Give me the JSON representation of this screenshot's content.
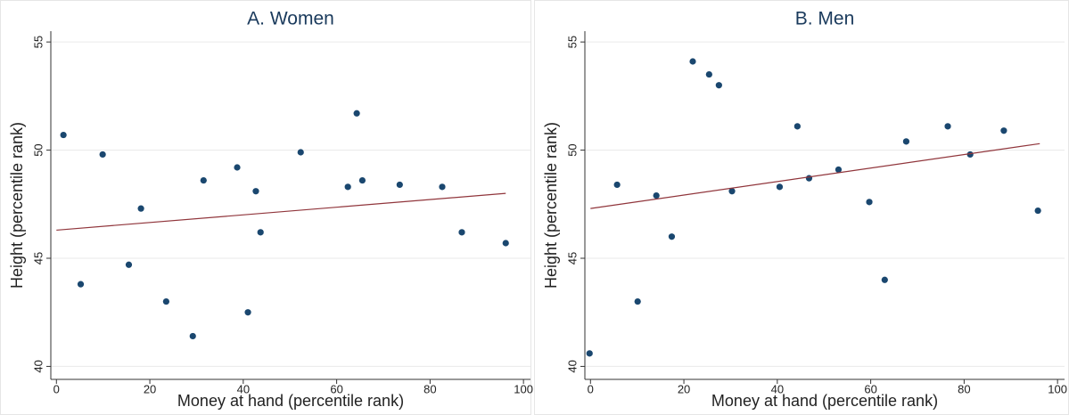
{
  "chart_data": [
    {
      "type": "scatter",
      "title": "A. Women",
      "x_label": "Money at hand (percentile rank)",
      "y_label": "Height (percentile rank)",
      "xlim": [
        -1.2,
        101.5
      ],
      "ylim": [
        39.4,
        55.5
      ],
      "xticks": [
        0,
        20,
        40,
        60,
        80,
        100
      ],
      "yticks": [
        40,
        45,
        50,
        55
      ],
      "grid": true,
      "series": [
        {
          "type": "scatter",
          "color": "#1a476f",
          "x": [
            1.5,
            5.2,
            9.9,
            15.5,
            18.1,
            23.5,
            29.2,
            31.5,
            38.7,
            41.0,
            42.7,
            43.7,
            52.3,
            62.4,
            64.3,
            65.5,
            73.5,
            82.6,
            86.8,
            96.2
          ],
          "values": [
            50.7,
            43.8,
            49.8,
            44.7,
            47.3,
            43.0,
            41.4,
            48.6,
            49.2,
            42.5,
            48.1,
            46.2,
            49.9,
            48.3,
            51.7,
            48.6,
            48.4,
            48.3,
            46.2,
            45.7
          ]
        },
        {
          "type": "line",
          "color": "#90353b",
          "x": [
            0,
            96.2
          ],
          "values": [
            46.3,
            48.0
          ]
        }
      ]
    },
    {
      "type": "scatter",
      "title": "B. Men",
      "x_label": "Money at hand (percentile rank)",
      "y_label": "Height (percentile rank)",
      "xlim": [
        -1.2,
        101.5
      ],
      "ylim": [
        39.4,
        55.5
      ],
      "xticks": [
        0,
        20,
        40,
        60,
        80,
        100
      ],
      "yticks": [
        40,
        45,
        50,
        55
      ],
      "grid": true,
      "series": [
        {
          "type": "scatter",
          "color": "#1a476f",
          "x": [
            -0.2,
            5.7,
            10.1,
            14.1,
            17.4,
            21.9,
            25.4,
            27.5,
            30.3,
            40.5,
            44.3,
            46.8,
            53.1,
            59.7,
            63.0,
            67.6,
            76.5,
            81.3,
            88.5,
            95.8
          ],
          "values": [
            40.6,
            48.4,
            43.0,
            47.9,
            46.0,
            54.1,
            53.5,
            53.0,
            48.1,
            48.3,
            51.1,
            48.7,
            49.1,
            47.6,
            44.0,
            50.4,
            51.1,
            49.8,
            50.9,
            47.2
          ]
        },
        {
          "type": "line",
          "color": "#90353b",
          "x": [
            0,
            96.2
          ],
          "values": [
            47.3,
            50.3
          ]
        }
      ]
    }
  ]
}
